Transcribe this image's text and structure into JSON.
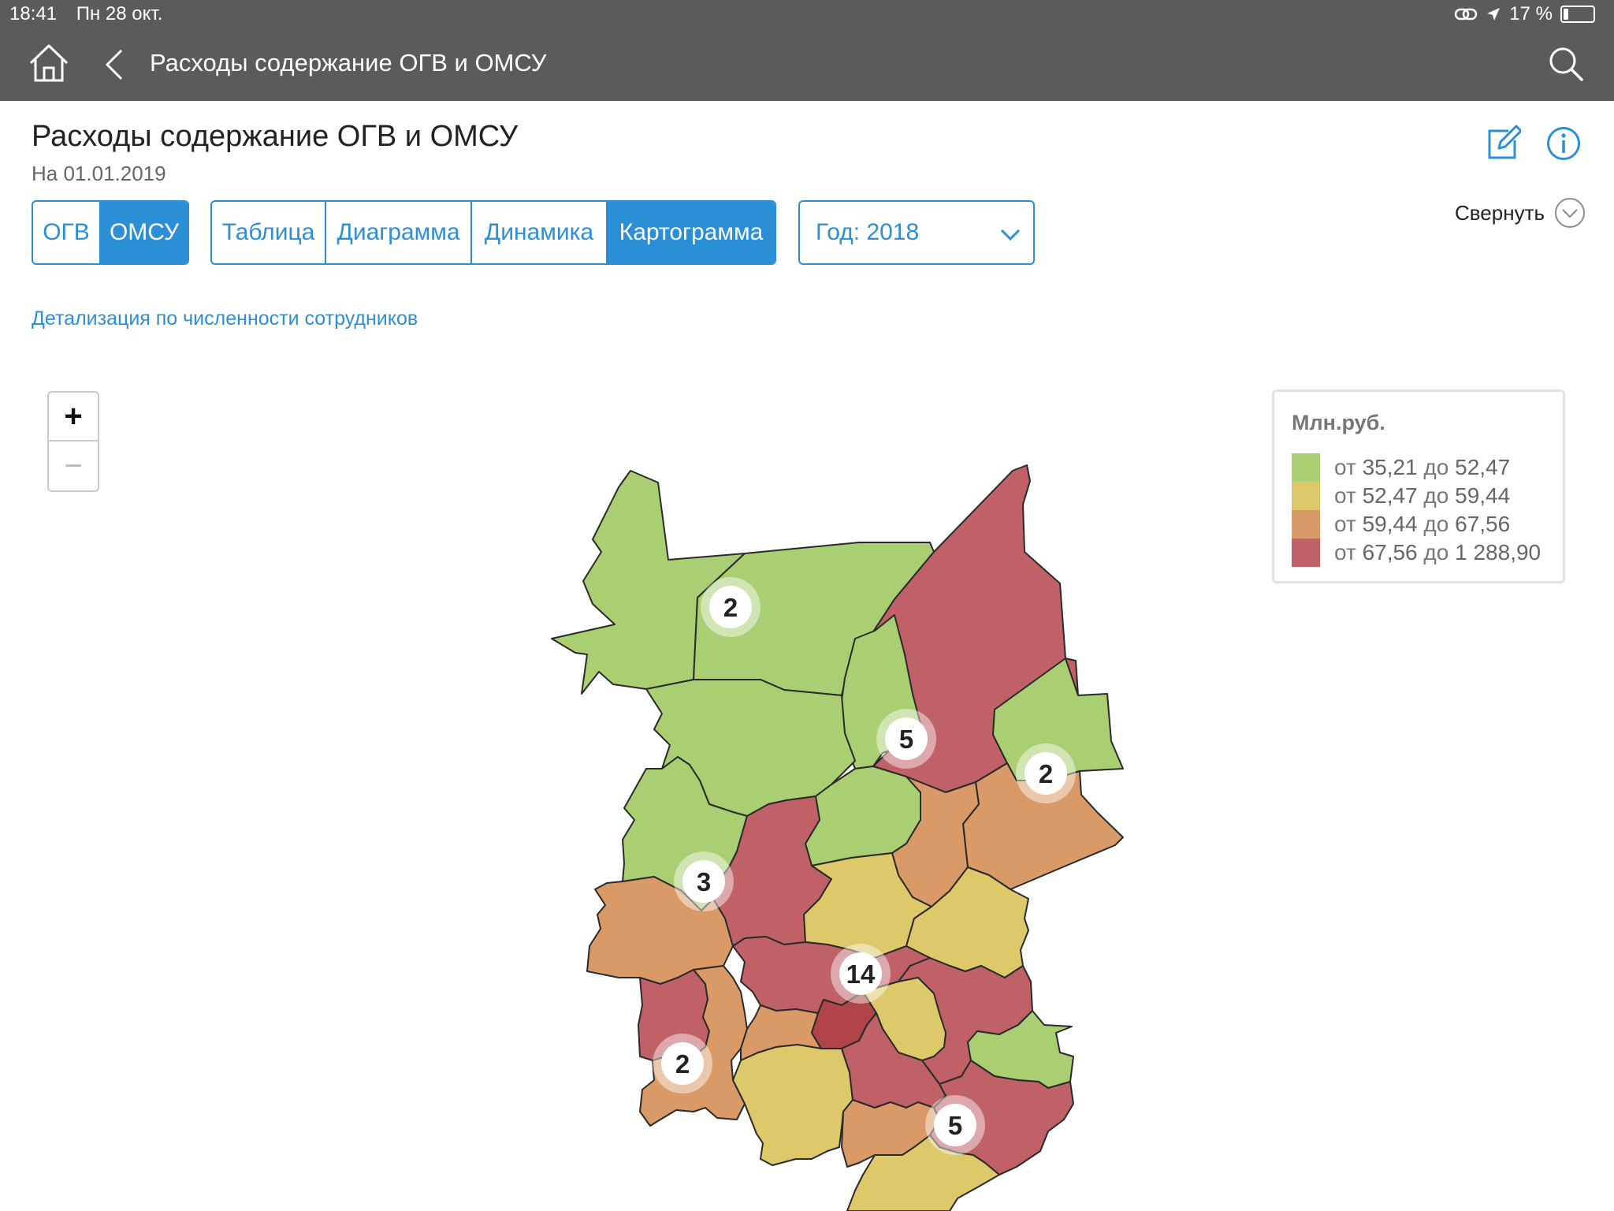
{
  "status_bar": {
    "time": "18:41",
    "date": "Пн 28 окт.",
    "battery_text": "17 %",
    "battery_level": 0.17
  },
  "nav": {
    "title": "Расходы содержание ОГВ и ОМСУ",
    "icons": [
      "home-icon",
      "back-chevron-icon",
      "search-icon"
    ]
  },
  "header": {
    "title": "Расходы содержание ОГВ и ОМСУ",
    "date": "На 01.01.2019",
    "collapse_label": "Свернуть",
    "icons": [
      "edit-icon",
      "info-icon",
      "collapse-chevron-icon"
    ]
  },
  "level_tabs": [
    {
      "label": "ОГВ",
      "active": false
    },
    {
      "label": "ОМСУ",
      "active": true
    }
  ],
  "view_tabs": [
    {
      "label": "Таблица",
      "active": false
    },
    {
      "label": "Диаграмма",
      "active": false
    },
    {
      "label": "Динамика",
      "active": false
    },
    {
      "label": "Картограмма",
      "active": true
    }
  ],
  "year_select": {
    "value": "Год: 2018"
  },
  "detail_link": "Детализация по численности сотрудников",
  "map": {
    "zoom_in_label": "+",
    "zoom_out_label": "−",
    "clusters": [
      "2",
      "5",
      "2",
      "3",
      "14",
      "2",
      "5"
    ],
    "colors": {
      "green": "#a9cf72",
      "yellow": "#ddc86a",
      "orange": "#da9a68",
      "red": "#c06168",
      "dark_red": "#b04448"
    }
  },
  "legend": {
    "title": "Млн.руб.",
    "items": [
      {
        "from_word": "от",
        "from": "35,21",
        "to_word": "до",
        "to": "52,47",
        "color": "#a9cf72"
      },
      {
        "from_word": "от",
        "from": "52,47",
        "to_word": "до",
        "to": "59,44",
        "color": "#ddc86a"
      },
      {
        "from_word": "от",
        "from": "59,44",
        "to_word": "до",
        "to": "67,56",
        "color": "#da9a68"
      },
      {
        "from_word": "от",
        "from": "67,56",
        "to_word": "до",
        "to": "1 288,90",
        "color": "#c06168"
      }
    ]
  }
}
